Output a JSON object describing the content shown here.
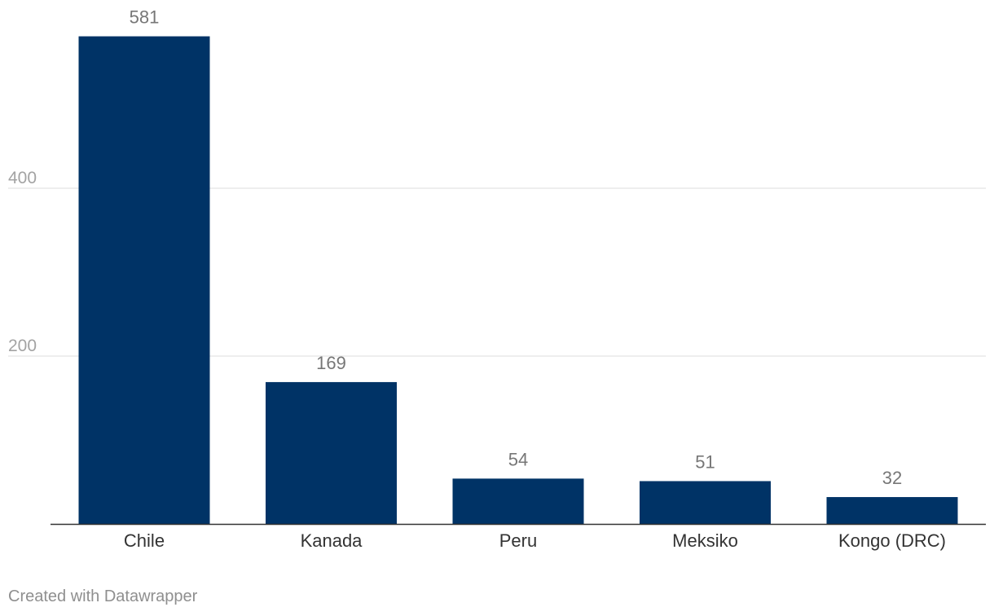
{
  "chart_data": {
    "type": "bar",
    "categories": [
      "Chile",
      "Kanada",
      "Peru",
      "Meksiko",
      "Kongo (DRC)"
    ],
    "values": [
      581,
      169,
      54,
      51,
      32
    ],
    "yticks": [
      200,
      400
    ],
    "ylim": [
      0,
      600
    ],
    "grid": true,
    "bar_color": "#003366",
    "title": "",
    "xlabel": "",
    "ylabel": ""
  },
  "footer": {
    "credit": "Created with Datawrapper"
  }
}
